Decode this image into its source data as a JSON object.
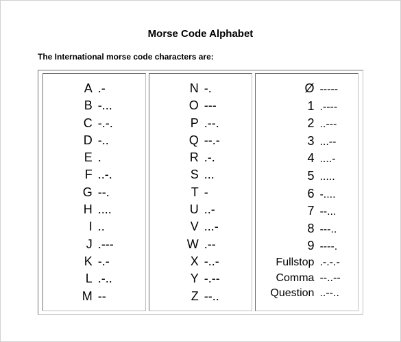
{
  "title": "Morse Code Alphabet",
  "subtitle": "The International morse code characters are:",
  "columns": [
    [
      {
        "char": "A",
        "code": ".-"
      },
      {
        "char": "B",
        "code": "-..."
      },
      {
        "char": "C",
        "code": "-.-."
      },
      {
        "char": "D",
        "code": "-.."
      },
      {
        "char": "E",
        "code": "."
      },
      {
        "char": "F",
        "code": "..-."
      },
      {
        "char": "G",
        "code": "--."
      },
      {
        "char": "H",
        "code": "...."
      },
      {
        "char": "I",
        "code": ".."
      },
      {
        "char": "J",
        "code": ".---"
      },
      {
        "char": "K",
        "code": "-.-"
      },
      {
        "char": "L",
        "code": ".-.."
      },
      {
        "char": "M",
        "code": "--"
      }
    ],
    [
      {
        "char": "N",
        "code": "-."
      },
      {
        "char": "O",
        "code": "---"
      },
      {
        "char": "P",
        "code": ".--."
      },
      {
        "char": "Q",
        "code": "--.-"
      },
      {
        "char": "R",
        "code": ".-."
      },
      {
        "char": "S",
        "code": "..."
      },
      {
        "char": "T",
        "code": "-"
      },
      {
        "char": "U",
        "code": "..-"
      },
      {
        "char": "V",
        "code": "...-"
      },
      {
        "char": "W",
        "code": ".--"
      },
      {
        "char": "X",
        "code": "-..-"
      },
      {
        "char": "Y",
        "code": "-.--"
      },
      {
        "char": "Z",
        "code": "--.."
      }
    ],
    [
      {
        "char": "Ø",
        "code": "-----"
      },
      {
        "char": "1",
        "code": ".----"
      },
      {
        "char": "2",
        "code": "..---"
      },
      {
        "char": "3",
        "code": "...--"
      },
      {
        "char": "4",
        "code": "....-"
      },
      {
        "char": "5",
        "code": "....."
      },
      {
        "char": "6",
        "code": "-...."
      },
      {
        "char": "7",
        "code": "--..."
      },
      {
        "char": "8",
        "code": "---.."
      },
      {
        "char": "9",
        "code": "----."
      },
      {
        "char": "Fullstop",
        "code": ".-.-.-",
        "word": true
      },
      {
        "char": "Comma",
        "code": "--..--",
        "word": true
      },
      {
        "char": "Question",
        "code": "..--..",
        "word": true
      }
    ]
  ],
  "style": {
    "background_color": "#ffffff",
    "border_color": "#bfbfbf",
    "text_color": "#000000",
    "title_fontsize": 15,
    "subtitle_fontsize": 12,
    "row_fontsize": 18,
    "font_family": "Arial"
  }
}
